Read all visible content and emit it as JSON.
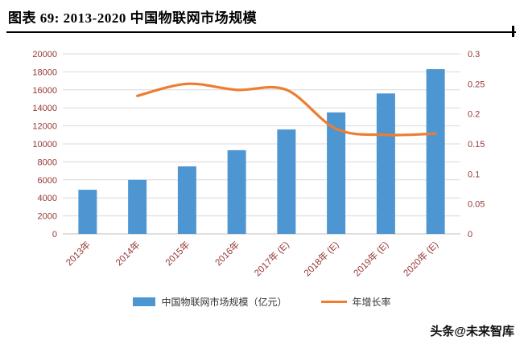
{
  "header": {
    "title": "图表 69: 2013-2020 中国物联网市场规模"
  },
  "colors": {
    "bar": "#4e96d1",
    "line": "#ed7d31",
    "grid": "#d9d9d9",
    "axis_line": "#bfbfbf",
    "tick_text": "#953735"
  },
  "legend": {
    "items": [
      {
        "label": "中国物联网市场规模（亿元）",
        "swatch": "bar-swatch"
      },
      {
        "label": "年增长率",
        "swatch": "line-swatch"
      }
    ]
  },
  "footer": {
    "watermark": "头条@未来智库"
  },
  "chart_data": {
    "type": "bar+line",
    "title": "图表 69: 2013-2020 中国物联网市场规模",
    "categories": [
      "2013年",
      "2014年",
      "2015年",
      "2016年",
      "2017年 (E)",
      "2018年 (E)",
      "2019年 (E)",
      "2020年 (E)"
    ],
    "series": [
      {
        "name": "中国物联网市场规模（亿元）",
        "type": "bar",
        "axis": "left",
        "values": [
          4900,
          6000,
          7500,
          9300,
          11600,
          13500,
          15600,
          18300
        ]
      },
      {
        "name": "年增长率",
        "type": "line",
        "axis": "right",
        "values": [
          null,
          0.23,
          0.25,
          0.24,
          0.24,
          0.175,
          0.165,
          0.167
        ]
      }
    ],
    "left_axis": {
      "min": 0,
      "max": 20000,
      "step": 2000,
      "ticks": [
        "0",
        "2000",
        "4000",
        "6000",
        "8000",
        "10000",
        "12000",
        "14000",
        "16000",
        "18000",
        "20000"
      ]
    },
    "right_axis": {
      "min": 0,
      "max": 0.3,
      "step": 0.05,
      "ticks": [
        "0",
        "0.05",
        "0.1",
        "0.15",
        "0.2",
        "0.25",
        "0.3"
      ]
    },
    "grid": true,
    "legend_position": "bottom"
  }
}
